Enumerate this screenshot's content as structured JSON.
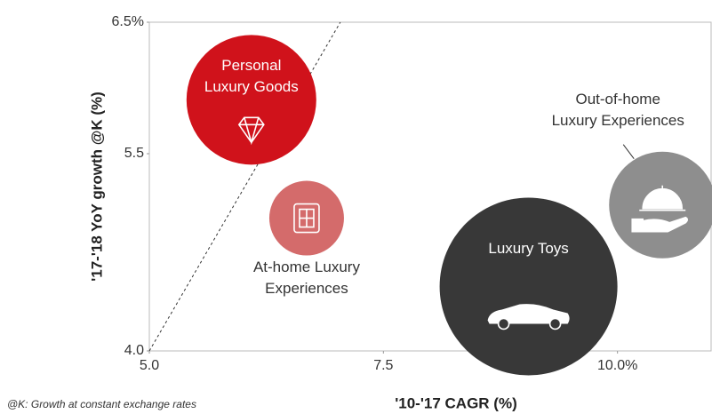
{
  "chart_data": {
    "type": "bubble",
    "x_label": "'10-'17 CAGR (%)",
    "y_label": "'17-'18 YoY growth @K (%)",
    "footnote": "@K: Growth at constant exchange rates",
    "xlim": [
      5.0,
      11.0
    ],
    "ylim": [
      4.0,
      6.5
    ],
    "xticks": [
      {
        "value": 5,
        "label": "5.0"
      },
      7.5,
      {
        "value": 10,
        "label": "10.0%"
      }
    ],
    "yticks": [
      {
        "value": 4,
        "label": "4.0"
      },
      5.5,
      {
        "value": 6.5,
        "label": "6.5%"
      }
    ],
    "reference_line": {
      "x": [
        5.0,
        7.04
      ],
      "y": [
        4.0,
        6.5
      ]
    },
    "series": [
      {
        "name": "Personal Luxury Goods",
        "label_lines": [
          "Personal",
          "Luxury Goods"
        ],
        "color": "#d0121b",
        "x": 6.09,
        "y": 5.91,
        "size": 73
      },
      {
        "name": "At-home Luxury Experiences",
        "label_lines": [
          "At-home Luxury",
          "Experiences"
        ],
        "color": "#d46b6b",
        "x": 6.68,
        "y": 5.01,
        "size": 42
      },
      {
        "name": "Luxury Toys",
        "label_lines": [
          "Luxury Toys"
        ],
        "color": "#383838",
        "x": 9.05,
        "y": 4.49,
        "size": 100
      },
      {
        "name": "Out-of-home Luxury Experiences",
        "label_lines": [
          "Out-of-home",
          "Luxury Experiences"
        ],
        "color": "#8e8e8e",
        "x": 10.48,
        "y": 5.11,
        "size": 60
      }
    ]
  }
}
